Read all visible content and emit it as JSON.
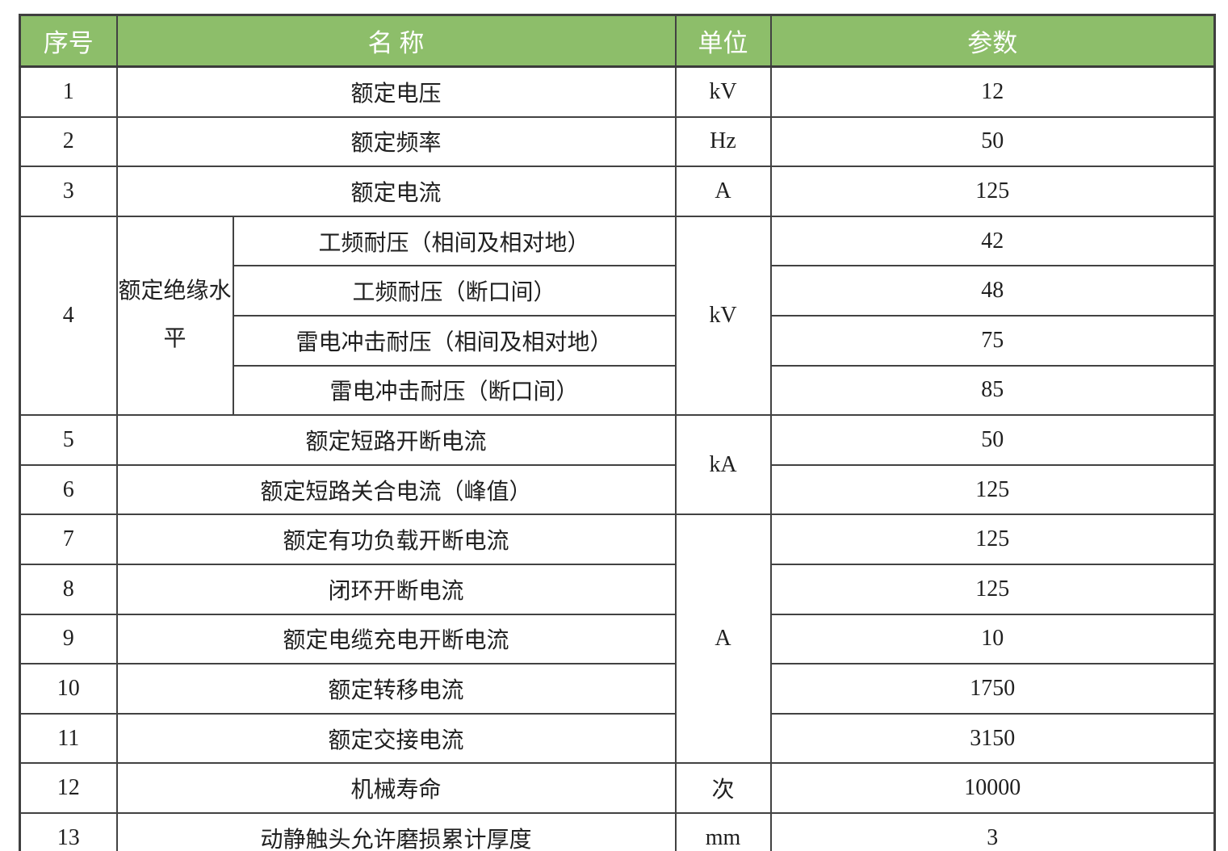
{
  "theme": {
    "header_bg": "#8dbe6a",
    "header_text": "#ffffff",
    "border_color": "#424242",
    "body_text": "#1f1f1f"
  },
  "table": {
    "headers": {
      "no": "序号",
      "name": "名 称",
      "unit": "单位",
      "param": "参数"
    },
    "rows": [
      {
        "no": "1",
        "name": "额定电压",
        "unit": "kV",
        "value": "12"
      },
      {
        "no": "2",
        "name": "额定频率",
        "unit": "Hz",
        "value": "50"
      },
      {
        "no": "3",
        "name": "额定电流",
        "unit": "A",
        "value": "125"
      },
      {
        "no": "4",
        "group": "额定绝缘水平",
        "unit": "kV",
        "subrows": [
          {
            "name": "工频耐压（相间及相对地）",
            "value": "42"
          },
          {
            "name": "工频耐压（断口间）",
            "value": "48"
          },
          {
            "name": "雷电冲击耐压（相间及相对地）",
            "value": "75"
          },
          {
            "name": "雷电冲击耐压（断口间）",
            "value": "85"
          }
        ]
      },
      {
        "no": "5",
        "name": "额定短路开断电流",
        "unit": "kA",
        "value": "50"
      },
      {
        "no": "6",
        "name": "额定短路关合电流（峰值）",
        "value": "125"
      },
      {
        "no": "7",
        "name": "额定有功负载开断电流",
        "unit": "A",
        "value": "125"
      },
      {
        "no": "8",
        "name": "闭环开断电流",
        "value": "125"
      },
      {
        "no": "9",
        "name": "额定电缆充电开断电流",
        "value": "10"
      },
      {
        "no": "10",
        "name": "额定转移电流",
        "value": "1750"
      },
      {
        "no": "11",
        "name": "额定交接电流",
        "value": "3150"
      },
      {
        "no": "12",
        "name": "机械寿命",
        "unit": "次",
        "value": "10000"
      },
      {
        "no": "13",
        "name": "动静触头允许磨损累计厚度",
        "unit": "mm",
        "value": "3"
      }
    ]
  }
}
